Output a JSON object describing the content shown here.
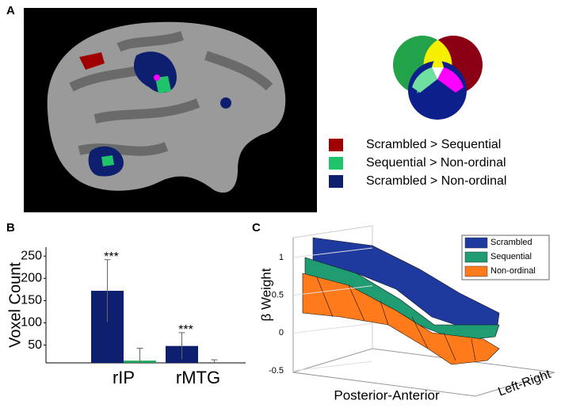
{
  "panels": {
    "a": "A",
    "b": "B",
    "c": "C"
  },
  "figure_a": {
    "legend": [
      {
        "label": "Scrambled > Sequential",
        "color": "#a00000"
      },
      {
        "label": "Sequential > Non-ordinal",
        "color": "#1fc46a"
      },
      {
        "label": "Scrambled > Non-ordinal",
        "color": "#0d1f6e"
      }
    ]
  },
  "chart_data": [
    {
      "type": "bar",
      "ylabel": "Voxel Count",
      "categories": [
        "rIP",
        "rMTG"
      ],
      "series": [
        {
          "color": "#0d1f6e",
          "values": [
            172,
            48
          ],
          "errors": [
            70,
            30
          ]
        },
        {
          "color": "#1fa35a",
          "values": [
            15,
            8
          ],
          "errors": [
            28,
            9
          ]
        }
      ],
      "annotations": [
        "***",
        "***"
      ],
      "ylim": [
        10,
        270
      ],
      "yticks": [
        50,
        100,
        150,
        200,
        250
      ]
    },
    {
      "type": "surface",
      "zlabel": "β Weight",
      "xlabel": "Posterior-Anterior",
      "ylabel": "Left-Right",
      "series": [
        {
          "name": "Scrambled",
          "color": "#1f3a9e"
        },
        {
          "name": "Sequential",
          "color": "#1f9c72"
        },
        {
          "name": "Non-ordinal",
          "color": "#ff7a1a"
        }
      ],
      "zlim": [
        -0.5,
        1
      ],
      "zticks": [
        {
          "value": -0.5,
          "label": "-0.5"
        },
        0,
        0.5,
        1
      ]
    }
  ]
}
